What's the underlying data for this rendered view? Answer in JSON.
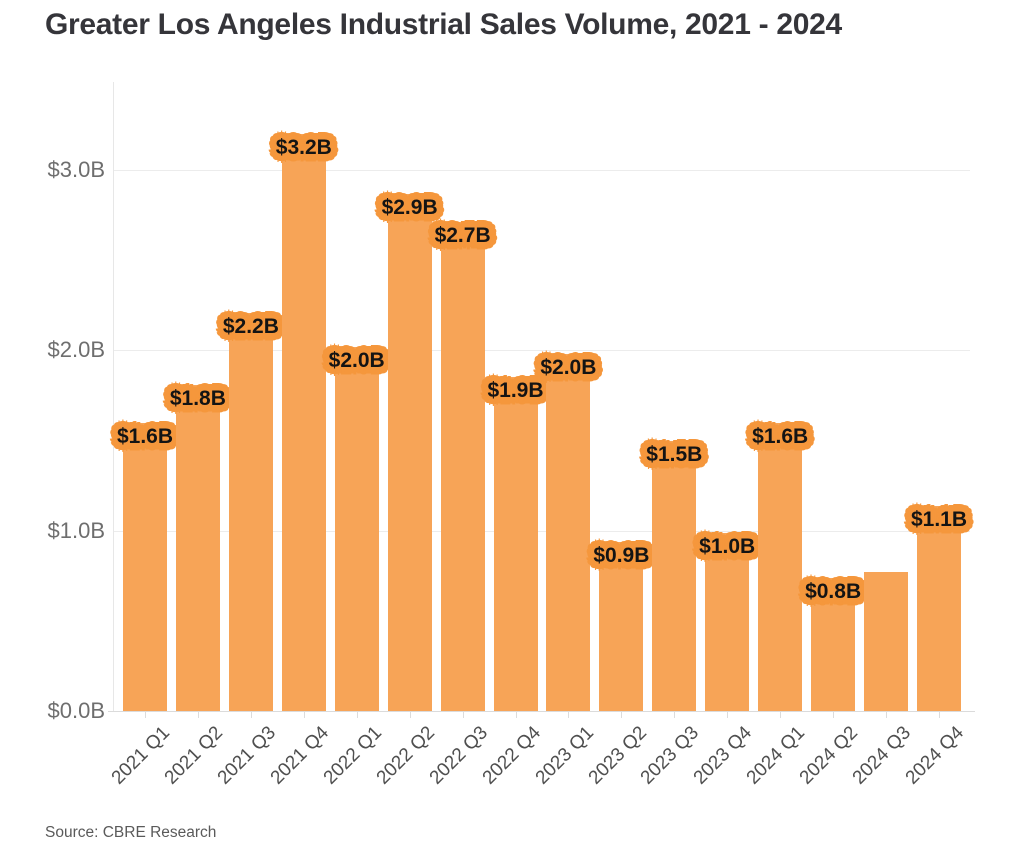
{
  "header": {
    "title": "Greater Los Angeles Industrial Sales Volume, 2021 - 2024"
  },
  "footer": {
    "source": "Source: CBRE Research"
  },
  "colors": {
    "background": "#ffffff",
    "bar": "#f7a457",
    "label_halo": "#f5973c",
    "label_text": "#141414",
    "gridline": "#ececec",
    "axis_line": "#e7e7e7",
    "baseline": "#dbdbdb",
    "y_tick_text": "#6e6e6e",
    "x_tick_text": "#4f4f4f",
    "title_text": "#35353a",
    "source_text": "#5a5a5a"
  },
  "chart_data": {
    "type": "bar",
    "title": "Greater Los Angeles Industrial Sales Volume, 2021 - 2024",
    "xlabel": "",
    "ylabel": "",
    "legend": "none",
    "grid": "horizontal",
    "ylim": [
      0,
      3.5
    ],
    "categories": [
      "2021 Q1",
      "2021 Q2",
      "2021 Q3",
      "2021 Q4",
      "2022 Q1",
      "2022 Q2",
      "2022 Q3",
      "2022 Q4",
      "2023 Q1",
      "2023 Q2",
      "2023 Q3",
      "2023 Q4",
      "2024 Q1",
      "2024 Q2",
      "2024 Q3",
      "2024 Q4"
    ],
    "values": [
      1.6,
      1.8,
      2.2,
      3.2,
      2.0,
      2.9,
      2.7,
      1.9,
      2.0,
      0.9,
      1.5,
      1.0,
      1.6,
      0.8,
      0.8,
      1.1
    ],
    "bar_labels": [
      "$1.6B",
      "$1.8B",
      "$2.2B",
      "$3.2B",
      "$2.0B",
      "$2.9B",
      "$2.7B",
      "$1.9B",
      "$2.0B",
      "$0.9B",
      "$1.5B",
      "$1.0B",
      "$1.6B",
      "$0.8B",
      null,
      "$1.1B"
    ],
    "bar_heights_b": [
      1.6,
      1.81,
      2.21,
      3.2,
      2.02,
      2.87,
      2.71,
      1.85,
      1.98,
      0.94,
      1.5,
      0.99,
      1.6,
      0.74,
      0.77,
      1.14
    ],
    "y_ticks": [
      {
        "value": 0,
        "label": "$0.0B"
      },
      {
        "value": 1,
        "label": "$1.0B"
      },
      {
        "value": 2,
        "label": "$2.0B"
      },
      {
        "value": 3,
        "label": "$3.0B"
      }
    ],
    "source": "Source: CBRE Research"
  }
}
